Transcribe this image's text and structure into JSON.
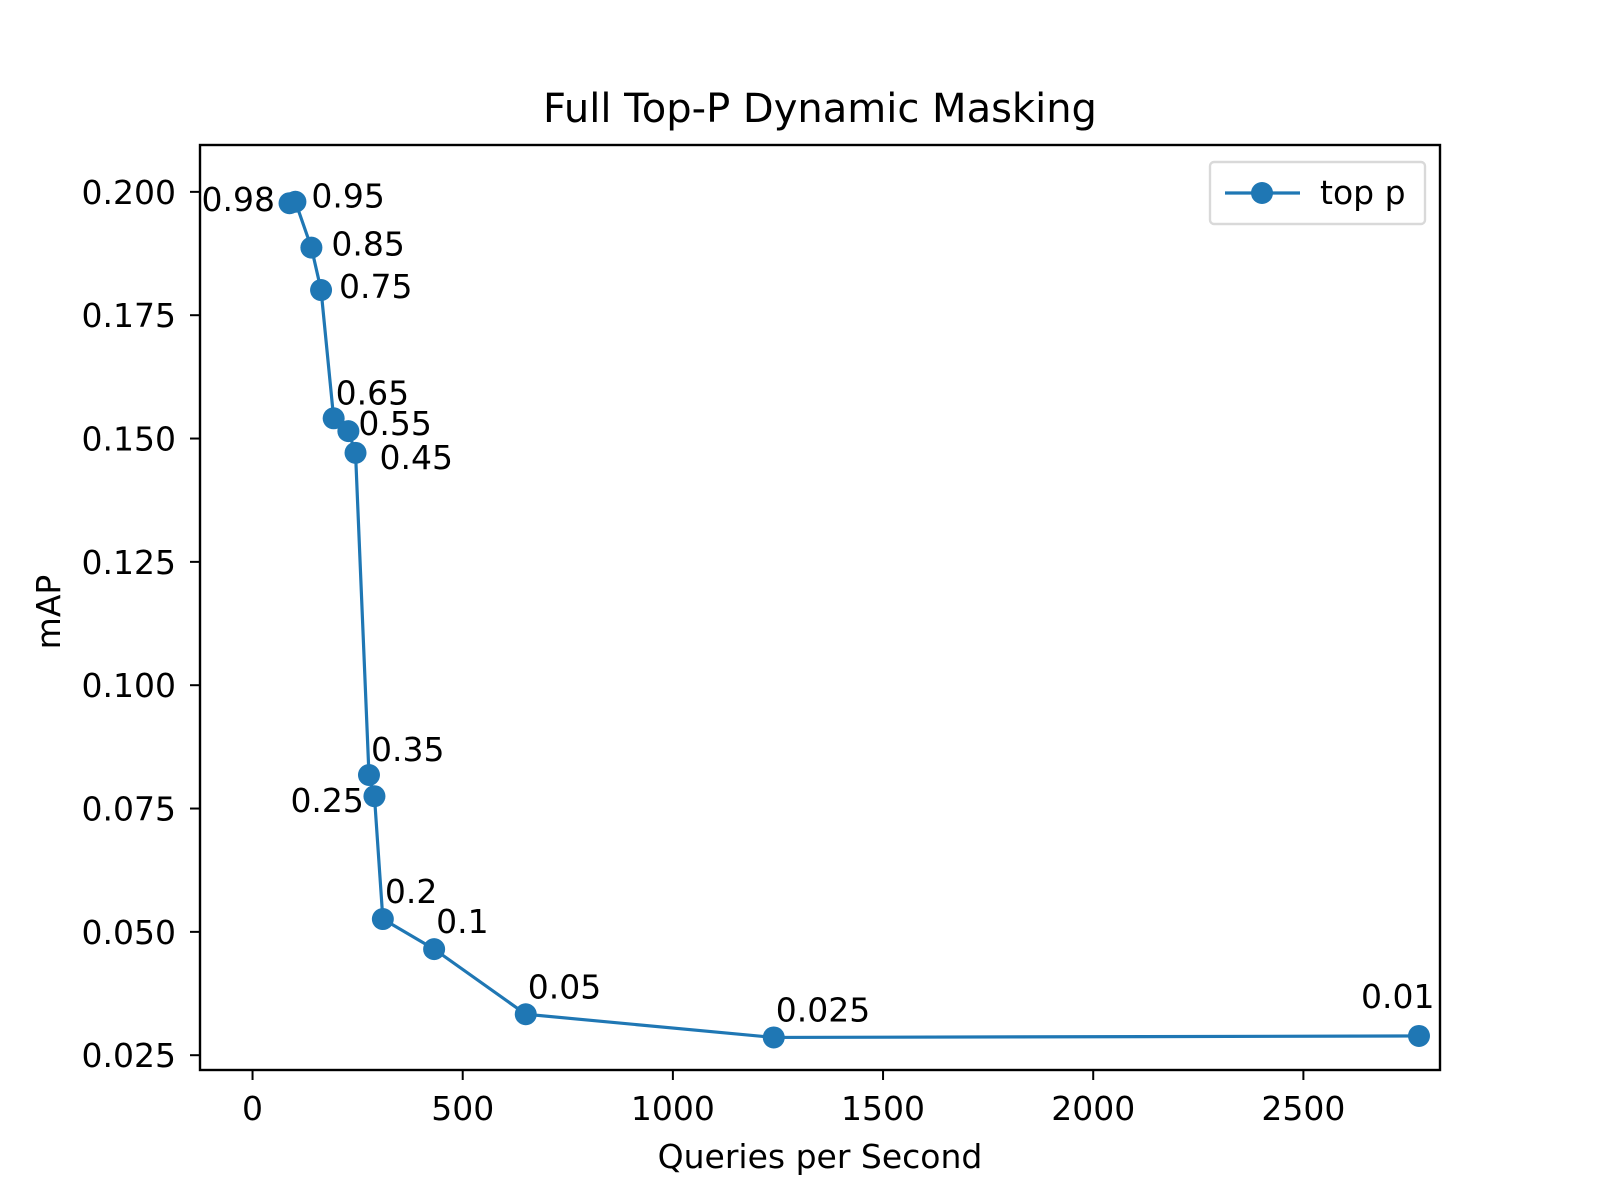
{
  "chart_data": {
    "type": "line",
    "title": "Full Top-P Dynamic Masking",
    "xlabel": "Queries per Second",
    "ylabel": "mAP",
    "xlim": [
      -125,
      2825
    ],
    "ylim": [
      0.022,
      0.2095
    ],
    "xticks": [
      0,
      500,
      1000,
      1500,
      2000,
      2500
    ],
    "xtick_labels": [
      "0",
      "500",
      "1000",
      "1500",
      "2000",
      "2500"
    ],
    "yticks": [
      0.025,
      0.05,
      0.075,
      0.1,
      0.125,
      0.15,
      0.175,
      0.2
    ],
    "ytick_labels": [
      "0.025",
      "0.050",
      "0.075",
      "0.100",
      "0.125",
      "0.150",
      "0.175",
      "0.200"
    ],
    "grid": false,
    "legend_position": "top-right",
    "series": [
      {
        "name": "top p",
        "color": "#1f77b4",
        "marker": "circle",
        "points": [
          {
            "x": 88,
            "y": 0.1977,
            "label": "0.98"
          },
          {
            "x": 102,
            "y": 0.198,
            "label": "0.95"
          },
          {
            "x": 140,
            "y": 0.1887,
            "label": "0.85"
          },
          {
            "x": 163,
            "y": 0.1801,
            "label": "0.75"
          },
          {
            "x": 193,
            "y": 0.1541,
            "label": "0.65"
          },
          {
            "x": 228,
            "y": 0.1515,
            "label": "0.55"
          },
          {
            "x": 245,
            "y": 0.1471,
            "label": "0.45"
          },
          {
            "x": 277,
            "y": 0.0818,
            "label": "0.35"
          },
          {
            "x": 290,
            "y": 0.0775,
            "label": "0.25"
          },
          {
            "x": 310,
            "y": 0.0526,
            "label": "0.2"
          },
          {
            "x": 432,
            "y": 0.0465,
            "label": "0.1"
          },
          {
            "x": 650,
            "y": 0.0333,
            "label": "0.05"
          },
          {
            "x": 1240,
            "y": 0.0286,
            "label": "0.025"
          },
          {
            "x": 2775,
            "y": 0.0289,
            "label": "0.01"
          }
        ]
      }
    ]
  }
}
